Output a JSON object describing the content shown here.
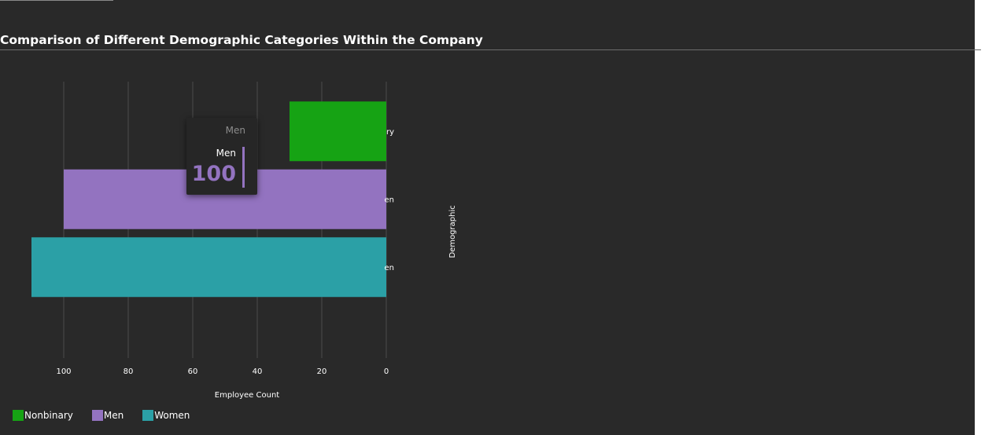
{
  "title": "Comparison of Different Demographic Categories Within the Company",
  "chart_data": {
    "type": "bar",
    "orientation": "horizontal",
    "x_reversed": true,
    "categories": [
      "Nonbinary",
      "Men",
      "Women"
    ],
    "values": [
      30,
      100,
      110
    ],
    "colors": [
      "#16a314",
      "#9373c0",
      "#2ba0a6"
    ],
    "xlabel": "Employee Count",
    "ylabel": "Demographic",
    "xlim": [
      0,
      110
    ],
    "xticks": [
      100,
      80,
      60,
      40,
      20,
      0
    ],
    "grid": true,
    "legend_position": "bottom-left"
  },
  "visible_category_labels": [
    "ry",
    "en",
    "en"
  ],
  "tooltip": {
    "header": "Men",
    "series": "Men",
    "value": "100",
    "color": "#9373c0"
  },
  "legend": [
    {
      "label": "Nonbinary",
      "color": "#16a314"
    },
    {
      "label": "Men",
      "color": "#9373c0"
    },
    {
      "label": "Women",
      "color": "#2ba0a6"
    }
  ]
}
